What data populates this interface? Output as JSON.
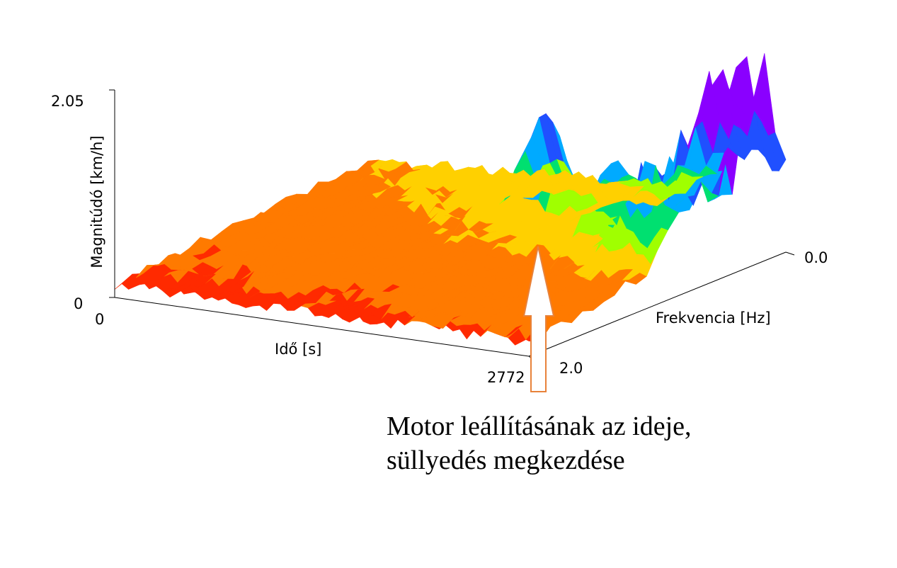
{
  "chart_data": {
    "type": "surface3d",
    "title": "",
    "zlabel": "Magnitúdó [km/h]",
    "xlabel": "Idő [s]",
    "ylabel": "Frekvencia [Hz]",
    "x_range": [
      0,
      2772
    ],
    "y_range": [
      0.0,
      2.0
    ],
    "z_range": [
      0,
      2.05
    ],
    "x_ticks": [
      "0",
      "2772"
    ],
    "y_ticks": [
      "0.0",
      "2.0"
    ],
    "z_ticks": [
      "0",
      "2.05"
    ],
    "colormap": [
      "#ff2a00",
      "#ff7a00",
      "#ffd000",
      "#a0ff00",
      "#00e070",
      "#00aaff",
      "#2050ff",
      "#8a00ff"
    ],
    "features": [
      {
        "desc": "peak",
        "x": 2772,
        "y": 0.2,
        "z": 2.05
      },
      {
        "desc": "peak",
        "x": 2772,
        "y": 0.45,
        "z": 2.0
      },
      {
        "desc": "ridge",
        "x": 2000,
        "y": 1.7,
        "z": 1.2
      }
    ]
  },
  "annotation": {
    "line1": "Motor leállításának az ideje,",
    "line2": "süllyedés megkezdése",
    "arrow_color": "#e8823a"
  }
}
